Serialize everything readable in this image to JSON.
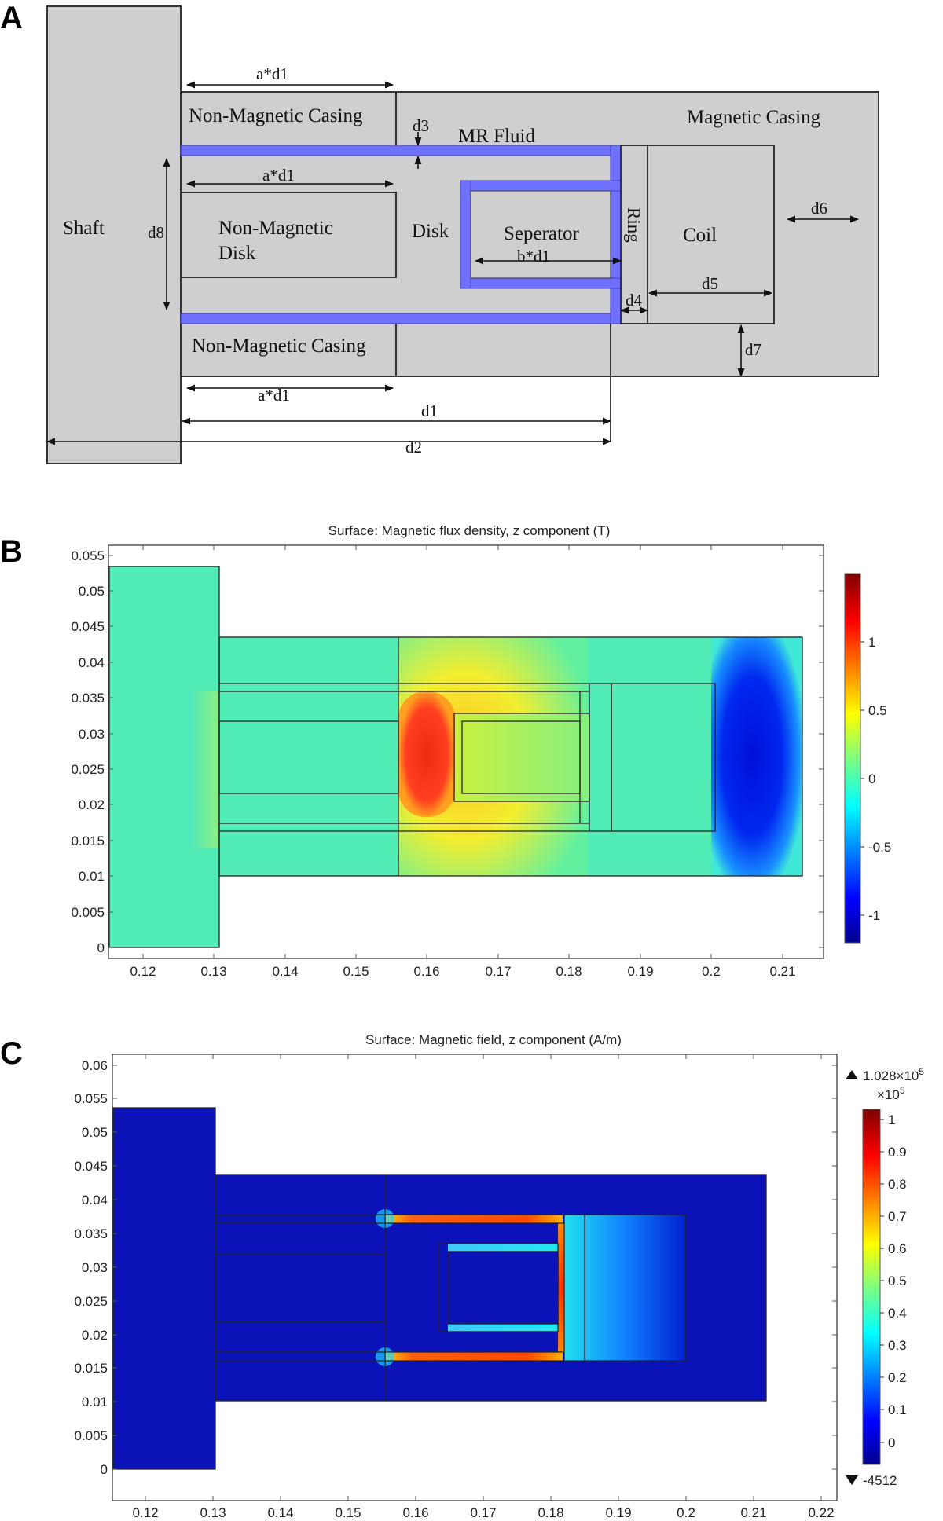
{
  "panels": {
    "a": {
      "letter": "A",
      "labels": {
        "shaft": "Shaft",
        "nm_casing_top": "Non-Magnetic Casing",
        "nm_casing_bottom": "Non-Magnetic Casing",
        "magnetic_casing": "Magnetic Casing",
        "mr_fluid": "MR Fluid",
        "nm_disk_line1": "Non-Magnetic",
        "nm_disk_line2": "Disk",
        "disk": "Disk",
        "separator": "Seperator",
        "ring": "Ring",
        "coil": "Coil"
      },
      "dimensions": {
        "ad1_top": "a*d1",
        "ad1_mid": "a*d1",
        "ad1_bottom": "a*d1",
        "bd1": "b*d1",
        "d1": "d1",
        "d2": "d2",
        "d3": "d3",
        "d4": "d4",
        "d5": "d5",
        "d6": "d6",
        "d7": "d7",
        "d8": "d8"
      },
      "colors": {
        "casing": "#cfcfcf",
        "fluid": "#7070ff",
        "outline": "#333333"
      }
    },
    "b": {
      "letter": "B",
      "title": "Surface: Magnetic flux density, z component (T)",
      "x_ticks": [
        "0.12",
        "0.13",
        "0.14",
        "0.15",
        "0.16",
        "0.17",
        "0.18",
        "0.19",
        "0.2",
        "0.21"
      ],
      "y_ticks": [
        "0",
        "0.005",
        "0.01",
        "0.015",
        "0.02",
        "0.025",
        "0.03",
        "0.035",
        "0.04",
        "0.045",
        "0.05",
        "0.055"
      ],
      "colorbar_ticks": [
        "1",
        "0.5",
        "0",
        "-0.5",
        "-1"
      ]
    },
    "c": {
      "letter": "C",
      "title": "Surface: Magnetic field, z component (A/m)",
      "x_ticks": [
        "0.12",
        "0.13",
        "0.14",
        "0.15",
        "0.16",
        "0.17",
        "0.18",
        "0.19",
        "0.2",
        "0.21",
        "0.22"
      ],
      "y_ticks": [
        "0",
        "0.005",
        "0.01",
        "0.015",
        "0.02",
        "0.025",
        "0.03",
        "0.035",
        "0.04",
        "0.045",
        "0.05",
        "0.055",
        "0.06"
      ],
      "colorbar_max": "1.028×10",
      "colorbar_max_exp": "5",
      "colorbar_scale": "×10",
      "colorbar_scale_exp": "5",
      "colorbar_ticks": [
        "1",
        "0.9",
        "0.8",
        "0.7",
        "0.6",
        "0.5",
        "0.4",
        "0.3",
        "0.2",
        "0.1",
        "0"
      ],
      "colorbar_min": "-4512"
    }
  }
}
